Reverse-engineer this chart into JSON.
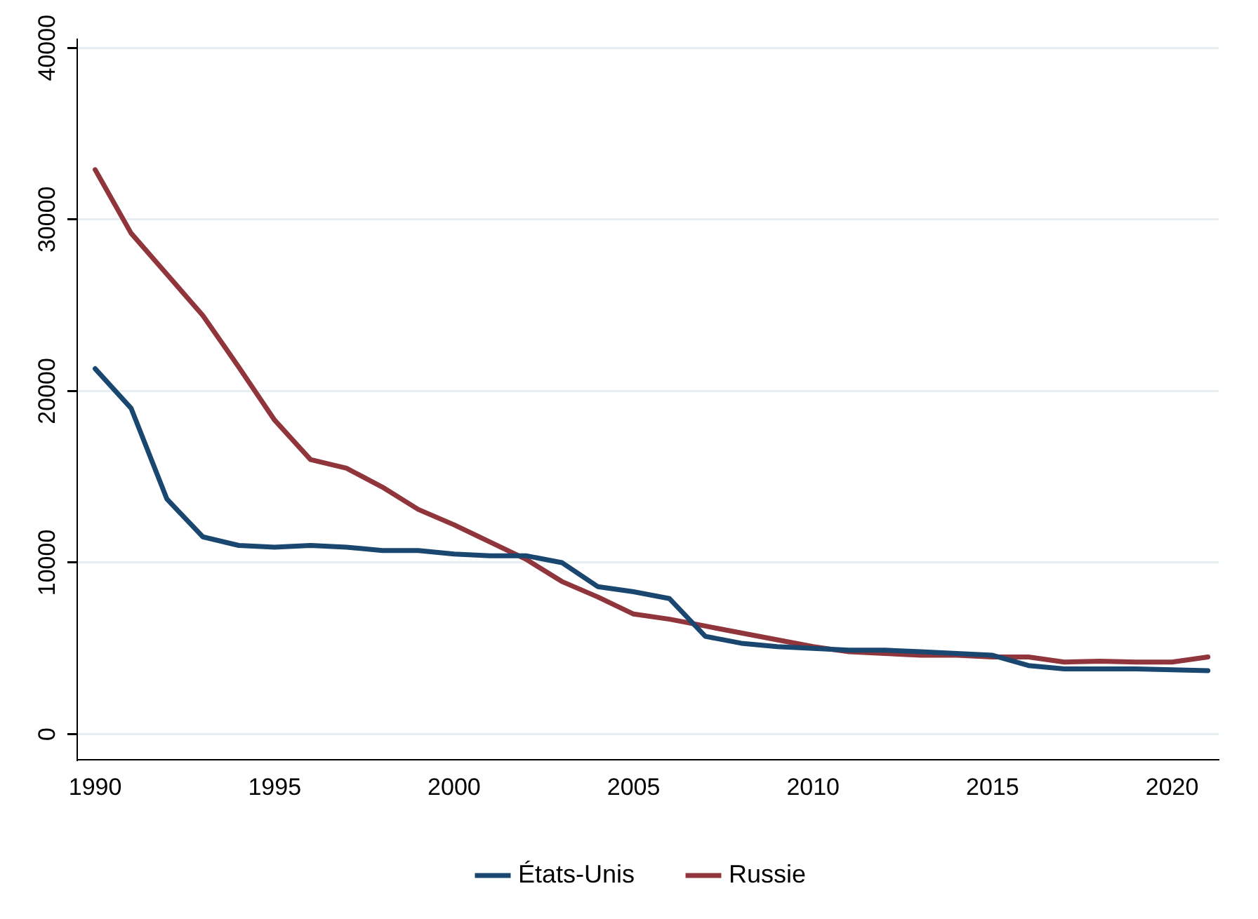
{
  "chart_data": {
    "type": "line",
    "x": [
      1990,
      1991,
      1992,
      1993,
      1994,
      1995,
      1996,
      1997,
      1998,
      1999,
      2000,
      2001,
      2002,
      2003,
      2004,
      2005,
      2006,
      2007,
      2008,
      2009,
      2010,
      2011,
      2012,
      2013,
      2014,
      2015,
      2016,
      2017,
      2018,
      2019,
      2020,
      2021
    ],
    "series": [
      {
        "name": "États-Unis",
        "color": "#1a476f",
        "values": [
          21300,
          19000,
          13700,
          11500,
          11000,
          10900,
          11000,
          10900,
          10700,
          10700,
          10500,
          10400,
          10400,
          10000,
          8600,
          8300,
          7900,
          5700,
          5300,
          5100,
          5000,
          4900,
          4900,
          4800,
          4700,
          4600,
          4000,
          3800,
          3800,
          3800,
          3750,
          3700
        ]
      },
      {
        "name": "Russie",
        "color": "#90353b",
        "values": [
          32900,
          29200,
          26800,
          24400,
          21400,
          18300,
          16000,
          15500,
          14400,
          13100,
          12200,
          11200,
          10200,
          8900,
          8000,
          7000,
          6700,
          6300,
          5900,
          5500,
          5100,
          4800,
          4700,
          4600,
          4600,
          4500,
          4500,
          4200,
          4250,
          4200,
          4200,
          4500
        ]
      }
    ],
    "xlim": [
      1989.5,
      2021.3
    ],
    "xticks": [
      1990,
      1995,
      2000,
      2005,
      2010,
      2015,
      2020
    ],
    "ylim": [
      -1500,
      40500
    ],
    "yticks": [
      0,
      10000,
      20000,
      30000,
      40000
    ],
    "grid": "y",
    "legend": "bottom",
    "marker": "none",
    "line_style": "solid"
  }
}
